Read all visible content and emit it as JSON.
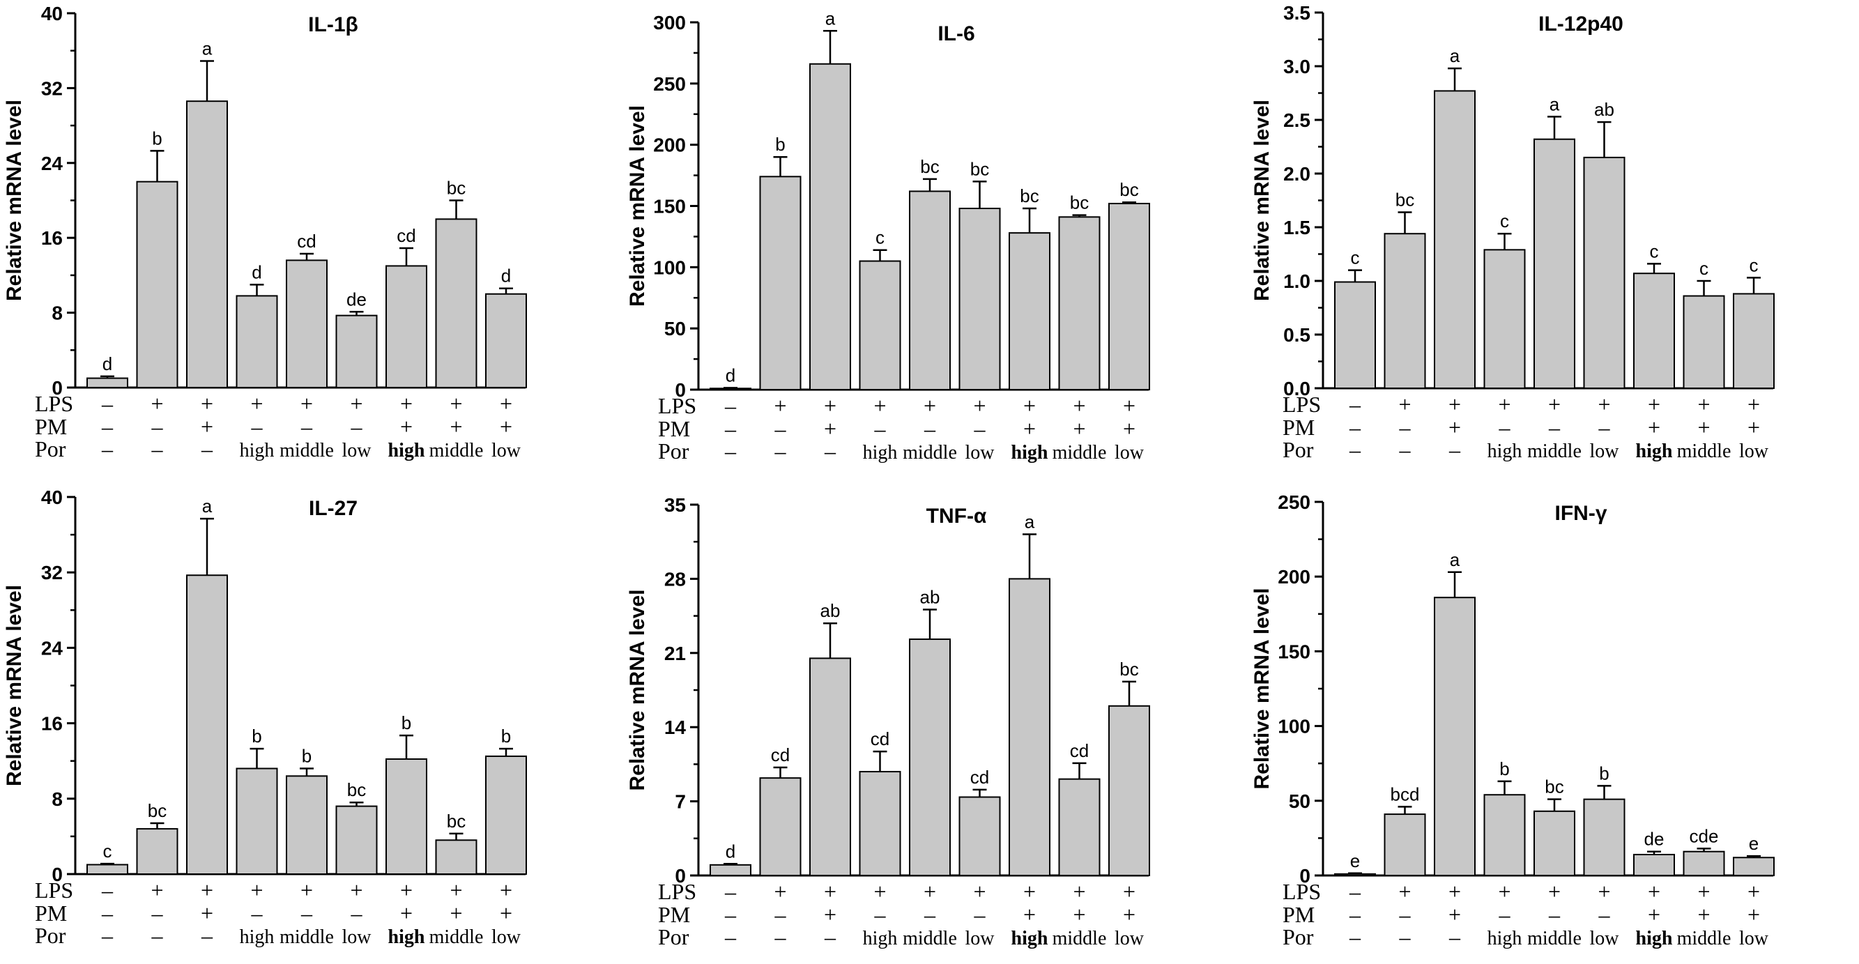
{
  "figure": {
    "colors": {
      "bar_fill": "#c8c8c8",
      "bar_stroke": "#000000",
      "axis": "#000000",
      "background": "#ffffff"
    },
    "row_labels": [
      "LPS",
      "PM",
      "Por"
    ],
    "conditions": {
      "LPS": [
        "–",
        "+",
        "+",
        "+",
        "+",
        "+",
        "+",
        "+",
        "+"
      ],
      "PM": [
        "–",
        "–",
        "+",
        "–",
        "–",
        "–",
        "+",
        "+",
        "+"
      ],
      "Por": [
        "–",
        "–",
        "–",
        "high",
        "middle",
        "low",
        "high",
        "middle",
        "low"
      ],
      "por_bold": [
        false,
        false,
        false,
        false,
        false,
        false,
        true,
        false,
        false
      ]
    }
  },
  "chart_data": [
    {
      "type": "bar",
      "title": "IL-1β",
      "ylabel": "Relative mRNA level",
      "xlabel": "",
      "ylim": [
        0,
        40
      ],
      "yticks": [
        0,
        8,
        16,
        24,
        32,
        40
      ],
      "tick_labels": [
        "0",
        "8",
        "16",
        "24",
        "32",
        "40"
      ],
      "values": [
        1.0,
        22.0,
        30.6,
        9.8,
        13.6,
        7.7,
        13.0,
        18.0,
        10.0
      ],
      "errors": [
        0.2,
        3.3,
        4.3,
        1.2,
        0.7,
        0.4,
        1.9,
        2.0,
        0.6
      ],
      "letters": [
        "d",
        "b",
        "a",
        "d",
        "cd",
        "de",
        "cd",
        "bc",
        "d"
      ]
    },
    {
      "type": "bar",
      "title": "IL-6",
      "ylabel": "Relative mRNA level",
      "xlabel": "",
      "ylim": [
        0,
        300
      ],
      "yticks": [
        0,
        50,
        100,
        150,
        200,
        250,
        300
      ],
      "tick_labels": [
        "0",
        "50",
        "100",
        "150",
        "200",
        "250",
        "300"
      ],
      "values": [
        1,
        174,
        266,
        105,
        162,
        148,
        128,
        141,
        152
      ],
      "errors": [
        0.5,
        16,
        27,
        9,
        10,
        22,
        20,
        1.5,
        1
      ],
      "letters": [
        "d",
        "b",
        "a",
        "c",
        "bc",
        "bc",
        "bc",
        "bc",
        "bc"
      ]
    },
    {
      "type": "bar",
      "title": "IL-12p40",
      "ylabel": "Relative mRNA level",
      "xlabel": "",
      "ylim": [
        0,
        3.5
      ],
      "yticks": [
        0,
        0.5,
        1.0,
        1.5,
        2.0,
        2.5,
        3.0,
        3.5
      ],
      "tick_labels": [
        "0.0",
        "0.5",
        "1.0",
        "1.5",
        "2.0",
        "2.5",
        "3.0",
        "3.5"
      ],
      "values": [
        0.99,
        1.44,
        2.77,
        1.29,
        2.32,
        2.15,
        1.07,
        0.86,
        0.88
      ],
      "errors": [
        0.11,
        0.2,
        0.21,
        0.15,
        0.21,
        0.33,
        0.09,
        0.14,
        0.15
      ],
      "letters": [
        "c",
        "bc",
        "a",
        "c",
        "a",
        "ab",
        "c",
        "c",
        "c"
      ]
    },
    {
      "type": "bar",
      "title": "IL-27",
      "ylabel": "Relative mRNA level",
      "xlabel": "",
      "ylim": [
        0,
        40
      ],
      "yticks": [
        0,
        8,
        16,
        24,
        32,
        40
      ],
      "tick_labels": [
        "0",
        "8",
        "16",
        "24",
        "32",
        "40"
      ],
      "values": [
        1.0,
        4.8,
        31.7,
        11.2,
        10.4,
        7.2,
        12.2,
        3.6,
        12.5
      ],
      "errors": [
        0.1,
        0.6,
        6.0,
        2.1,
        0.8,
        0.4,
        2.5,
        0.7,
        0.8
      ],
      "letters": [
        "c",
        "bc",
        "a",
        "b",
        "b",
        "bc",
        "b",
        "bc",
        "b"
      ]
    },
    {
      "type": "bar",
      "title": "TNF-α",
      "ylabel": "Relative mRNA level",
      "xlabel": "",
      "ylim": [
        0,
        35
      ],
      "yticks": [
        0,
        7,
        14,
        21,
        28,
        35
      ],
      "tick_labels": [
        "0",
        "7",
        "14",
        "21",
        "28",
        "35"
      ],
      "values": [
        1.0,
        9.2,
        20.5,
        9.8,
        22.3,
        7.4,
        28.0,
        9.1,
        16.0
      ],
      "errors": [
        0.1,
        1.0,
        3.3,
        1.9,
        2.8,
        0.7,
        4.2,
        1.5,
        2.3
      ],
      "letters": [
        "d",
        "cd",
        "ab",
        "cd",
        "ab",
        "cd",
        "a",
        "cd",
        "bc"
      ]
    },
    {
      "type": "bar",
      "title": "IFN-γ",
      "ylabel": "Relative mRNA level",
      "xlabel": "",
      "ylim": [
        0,
        250
      ],
      "yticks": [
        0,
        50,
        100,
        150,
        200,
        250
      ],
      "tick_labels": [
        "0",
        "50",
        "100",
        "150",
        "200",
        "250"
      ],
      "values": [
        1,
        41,
        186,
        54,
        43,
        51,
        14,
        16,
        12
      ],
      "errors": [
        0.5,
        5,
        17,
        9,
        8,
        9,
        2,
        2,
        1
      ],
      "letters": [
        "e",
        "bcd",
        "a",
        "b",
        "bc",
        "b",
        "de",
        "cde",
        "e"
      ]
    }
  ]
}
